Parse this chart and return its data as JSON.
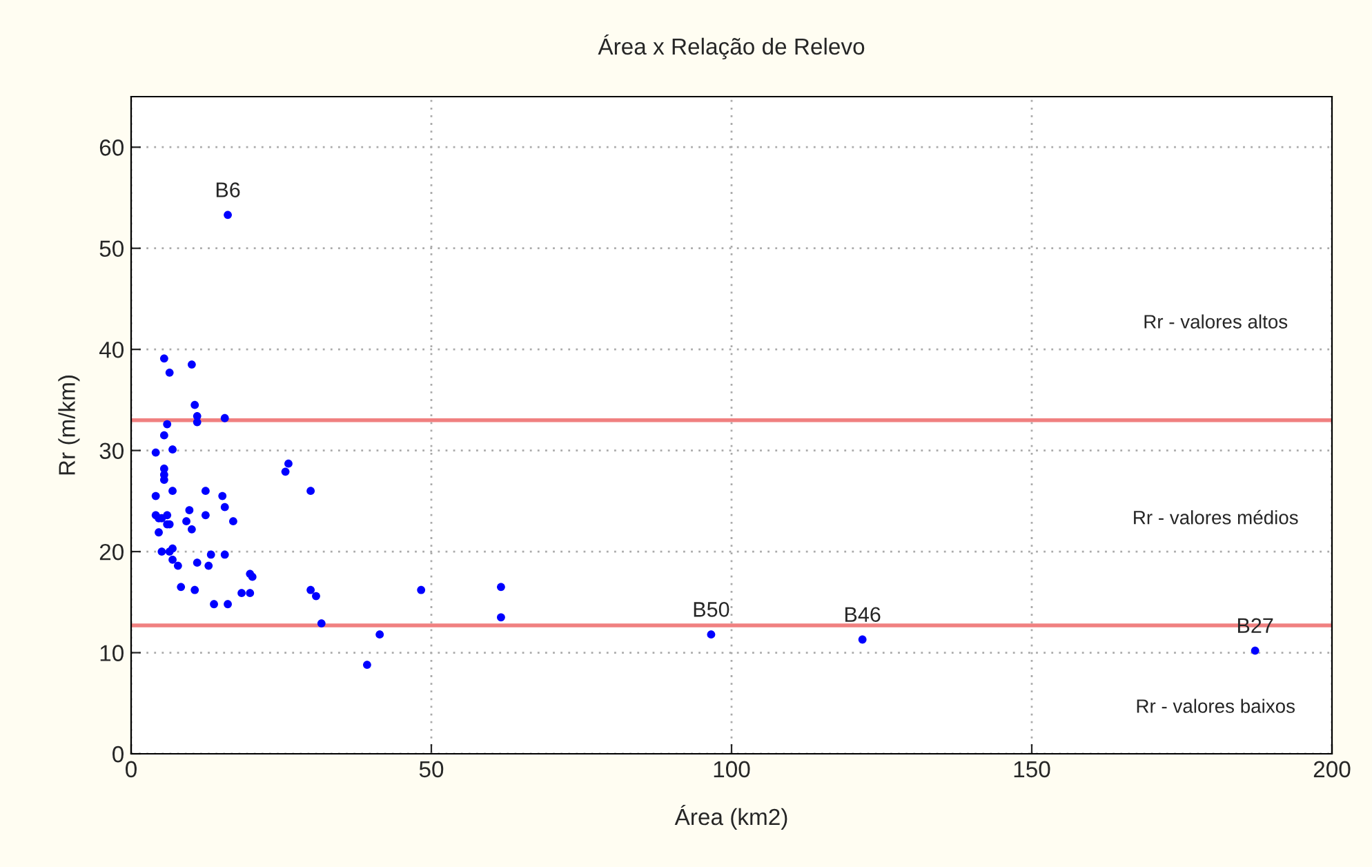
{
  "chart_data": {
    "type": "scatter",
    "title": "Área x Relação de Relevo",
    "xlabel": "Área (km2)",
    "ylabel": "Rr (m/km)",
    "series": [
      {
        "color": "#0000ff",
        "x": [
          16.1,
          5.5,
          10.1,
          6.4,
          10.6,
          11.0,
          11.0,
          15.6,
          6.0,
          5.5,
          6.9,
          4.1,
          5.5,
          5.5,
          5.5,
          25.7,
          26.2,
          6.9,
          12.4,
          29.9,
          4.1,
          15.2,
          15.6,
          9.7,
          4.1,
          12.4,
          4.6,
          5.1,
          6.0,
          6.0,
          6.4,
          9.2,
          17.0,
          10.1,
          4.6,
          5.1,
          6.4,
          6.9,
          13.3,
          15.6,
          6.9,
          7.8,
          11.0,
          12.9,
          19.8,
          20.2,
          8.3,
          10.6,
          18.4,
          19.8,
          29.9,
          30.8,
          13.8,
          16.1,
          31.7,
          61.6,
          61.6,
          48.3,
          41.4,
          39.3,
          96.6,
          121.8,
          187.2
        ],
        "values": [
          53.3,
          39.1,
          38.5,
          37.7,
          34.5,
          33.4,
          32.8,
          33.2,
          32.6,
          31.5,
          30.1,
          29.8,
          28.2,
          27.6,
          27.1,
          27.9,
          28.7,
          26.0,
          26.0,
          26.0,
          25.5,
          25.5,
          24.4,
          24.1,
          23.6,
          23.6,
          23.3,
          23.3,
          23.6,
          22.7,
          22.7,
          23.0,
          23.0,
          22.2,
          21.9,
          20.0,
          20.0,
          20.3,
          19.7,
          19.7,
          19.2,
          18.6,
          18.9,
          18.6,
          17.8,
          17.5,
          16.5,
          16.2,
          15.9,
          15.9,
          16.2,
          15.6,
          14.8,
          14.8,
          12.9,
          16.5,
          13.5,
          16.2,
          11.8,
          8.8,
          11.8,
          11.3,
          10.2
        ]
      }
    ],
    "xlim": [
      0,
      200
    ],
    "ylim": [
      0,
      65
    ],
    "xticks": [
      0,
      50,
      100,
      150,
      200
    ],
    "yticks": [
      0,
      10,
      20,
      30,
      40,
      50,
      60
    ],
    "grid": true,
    "marker": "circle",
    "legend": false,
    "ref_lines": [
      {
        "axis": "y",
        "value": 33.0,
        "color": "#f08080"
      },
      {
        "axis": "y",
        "value": 12.7,
        "color": "#f08080"
      }
    ],
    "annotations": [
      {
        "text": "B6",
        "x": 16.1,
        "y": 53.3
      },
      {
        "text": "B50",
        "x": 96.6,
        "y": 11.8
      },
      {
        "text": "B46",
        "x": 121.8,
        "y": 11.3
      },
      {
        "text": "B27",
        "x": 187.2,
        "y": 10.2
      },
      "Rr - valores altos",
      "Rr - valores médios",
      "Rr - valores baixos"
    ]
  }
}
